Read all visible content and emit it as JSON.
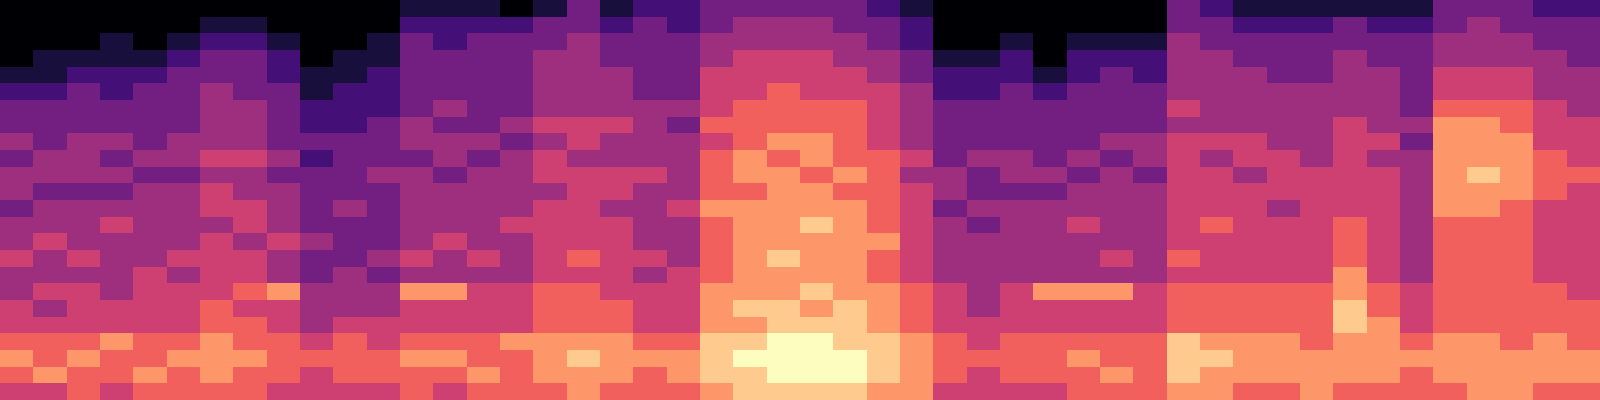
{
  "chart_data": {
    "type": "heatmap",
    "color": "magma",
    "tick_labels": false,
    "color_range": [
      0,
      9
    ],
    "values": [
      [
        5,
        6,
        7,
        6,
        5,
        5,
        4,
        4,
        5,
        4,
        4,
        3,
        4,
        4,
        3,
        4,
        3,
        3,
        2,
        1,
        0,
        0,
        0,
        0
      ],
      [
        5,
        7,
        6,
        6,
        5,
        4,
        5,
        4,
        4,
        5,
        4,
        4,
        3,
        4,
        4,
        3,
        3,
        3,
        2,
        1,
        1,
        0,
        0,
        0
      ],
      [
        6,
        6,
        7,
        6,
        5,
        5,
        5,
        4,
        5,
        4,
        4,
        4,
        3,
        4,
        4,
        4,
        3,
        3,
        3,
        2,
        1,
        0,
        0,
        0
      ],
      [
        5,
        6,
        6,
        7,
        5,
        5,
        4,
        4,
        4,
        4,
        5,
        4,
        3,
        4,
        3,
        4,
        3,
        3,
        2,
        2,
        1,
        1,
        0,
        0
      ],
      [
        6,
        7,
        6,
        6,
        5,
        5,
        5,
        5,
        4,
        4,
        4,
        4,
        4,
        3,
        4,
        3,
        3,
        3,
        3,
        2,
        1,
        0,
        0,
        0
      ],
      [
        6,
        6,
        7,
        6,
        5,
        5,
        5,
        4,
        5,
        4,
        4,
        4,
        4,
        3,
        4,
        4,
        3,
        3,
        3,
        3,
        2,
        1,
        0,
        0
      ],
      [
        6,
        7,
        7,
        7,
        6,
        6,
        5,
        5,
        5,
        5,
        4,
        5,
        5,
        4,
        5,
        4,
        4,
        4,
        4,
        3,
        3,
        2,
        1,
        0
      ],
      [
        6,
        6,
        7,
        6,
        6,
        5,
        6,
        5,
        5,
        4,
        5,
        5,
        4,
        4,
        5,
        4,
        4,
        4,
        3,
        3,
        3,
        2,
        1,
        0
      ],
      [
        5,
        6,
        6,
        6,
        5,
        5,
        7,
        4,
        4,
        5,
        4,
        4,
        4,
        3,
        4,
        3,
        3,
        3,
        3,
        2,
        2,
        1,
        0,
        0
      ],
      [
        5,
        5,
        6,
        5,
        4,
        4,
        4,
        3,
        3,
        4,
        3,
        3,
        3,
        3,
        2,
        3,
        2,
        2,
        1,
        1,
        0,
        0,
        0,
        0
      ],
      [
        5,
        6,
        6,
        6,
        5,
        4,
        4,
        4,
        3,
        3,
        3,
        4,
        3,
        3,
        3,
        3,
        2,
        2,
        2,
        1,
        1,
        0,
        0,
        0
      ],
      [
        5,
        6,
        6,
        5,
        5,
        4,
        4,
        3,
        4,
        3,
        3,
        3,
        3,
        4,
        3,
        3,
        3,
        2,
        2,
        2,
        1,
        1,
        0,
        0
      ],
      [
        6,
        6,
        7,
        6,
        5,
        5,
        7,
        4,
        5,
        4,
        4,
        4,
        4,
        4,
        3,
        4,
        4,
        3,
        3,
        3,
        3,
        3,
        2,
        1
      ],
      [
        5,
        6,
        7,
        6,
        5,
        5,
        7,
        4,
        4,
        5,
        4,
        4,
        4,
        3,
        4,
        4,
        3,
        4,
        3,
        3,
        3,
        2,
        2,
        1
      ],
      [
        6,
        7,
        6,
        6,
        5,
        5,
        5,
        4,
        5,
        4,
        4,
        4,
        4,
        4,
        3,
        4,
        3,
        3,
        3,
        3,
        3,
        3,
        2,
        1
      ],
      [
        6,
        6,
        6,
        7,
        5,
        5,
        5,
        4,
        4,
        4,
        5,
        4,
        4,
        4,
        4,
        3,
        4,
        3,
        3,
        3,
        3,
        3,
        2,
        0
      ],
      [
        6,
        7,
        7,
        7,
        6,
        6,
        6,
        5,
        5,
        5,
        5,
        5,
        4,
        5,
        5,
        4,
        5,
        4,
        4,
        4,
        4,
        3,
        3,
        1
      ],
      [
        7,
        7,
        8,
        7,
        6,
        6,
        6,
        5,
        6,
        5,
        5,
        5,
        5,
        5,
        4,
        5,
        5,
        4,
        4,
        4,
        4,
        4,
        3,
        3
      ],
      [
        6,
        7,
        7,
        7,
        6,
        6,
        5,
        5,
        5,
        5,
        5,
        4,
        5,
        5,
        4,
        4,
        5,
        4,
        4,
        4,
        3,
        3,
        2,
        1
      ],
      [
        6,
        6,
        7,
        6,
        5,
        5,
        5,
        4,
        5,
        4,
        4,
        4,
        4,
        5,
        4,
        4,
        4,
        4,
        3,
        3,
        3,
        3,
        3,
        2
      ],
      [
        6,
        7,
        7,
        6,
        5,
        5,
        5,
        5,
        4,
        4,
        4,
        5,
        4,
        4,
        4,
        4,
        3,
        4,
        3,
        3,
        3,
        3,
        2,
        2
      ],
      [
        7,
        8,
        8,
        8,
        7,
        7,
        7,
        6,
        6,
        6,
        6,
        7,
        6,
        6,
        6,
        5,
        6,
        5,
        5,
        5,
        4,
        4,
        3,
        3
      ],
      [
        8,
        8,
        9,
        8,
        7,
        8,
        7,
        7,
        7,
        7,
        7,
        7,
        6,
        7,
        7,
        6,
        6,
        6,
        5,
        5,
        5,
        4,
        4,
        3
      ],
      [
        8,
        9,
        9,
        9,
        8,
        8,
        7,
        7,
        8,
        7,
        7,
        7,
        7,
        7,
        6,
        7,
        6,
        6,
        6,
        5,
        5,
        4,
        4,
        3
      ],
      [
        8,
        9,
        9,
        9,
        8,
        7,
        8,
        7,
        7,
        7,
        8,
        7,
        7,
        6,
        7,
        7,
        6,
        6,
        5,
        5,
        5,
        4,
        4,
        3
      ],
      [
        8,
        9,
        9,
        8,
        8,
        8,
        7,
        7,
        7,
        7,
        7,
        7,
        6,
        7,
        6,
        6,
        6,
        6,
        5,
        5,
        4,
        4,
        3,
        3
      ],
      [
        7,
        8,
        8,
        8,
        7,
        7,
        7,
        6,
        6,
        7,
        6,
        6,
        6,
        6,
        6,
        5,
        5,
        5,
        5,
        4,
        4,
        3,
        3,
        2
      ],
      [
        7,
        7,
        7,
        7,
        6,
        6,
        6,
        5,
        5,
        5,
        5,
        5,
        5,
        4,
        5,
        4,
        4,
        4,
        4,
        3,
        3,
        2,
        2,
        1
      ],
      [
        5,
        6,
        6,
        6,
        5,
        5,
        5,
        4,
        4,
        4,
        4,
        3,
        4,
        4,
        3,
        3,
        3,
        3,
        2,
        2,
        1,
        0,
        0,
        0
      ],
      [
        5,
        5,
        6,
        5,
        5,
        4,
        4,
        4,
        4,
        4,
        3,
        4,
        3,
        3,
        4,
        3,
        3,
        3,
        2,
        2,
        1,
        0,
        0,
        0
      ],
      [
        5,
        6,
        6,
        6,
        5,
        5,
        5,
        4,
        4,
        4,
        4,
        4,
        3,
        4,
        4,
        3,
        3,
        3,
        3,
        2,
        2,
        1,
        0,
        0
      ],
      [
        5,
        6,
        6,
        6,
        5,
        5,
        7,
        4,
        4,
        4,
        4,
        4,
        3,
        4,
        3,
        3,
        3,
        3,
        2,
        1,
        0,
        0,
        0,
        0
      ],
      [
        6,
        6,
        7,
        6,
        5,
        5,
        7,
        4,
        4,
        4,
        5,
        4,
        4,
        3,
        4,
        3,
        3,
        3,
        3,
        2,
        2,
        1,
        0,
        0
      ],
      [
        6,
        7,
        6,
        6,
        5,
        5,
        7,
        4,
        5,
        4,
        4,
        4,
        4,
        4,
        3,
        4,
        3,
        3,
        3,
        3,
        2,
        1,
        0,
        0
      ],
      [
        6,
        6,
        6,
        6,
        5,
        5,
        5,
        4,
        4,
        4,
        4,
        4,
        4,
        3,
        4,
        4,
        3,
        3,
        3,
        2,
        2,
        1,
        0,
        0
      ],
      [
        7,
        8,
        8,
        8,
        6,
        6,
        6,
        5,
        6,
        5,
        5,
        5,
        5,
        5,
        5,
        5,
        4,
        5,
        4,
        4,
        4,
        4,
        3,
        3
      ],
      [
        7,
        7,
        8,
        7,
        6,
        6,
        6,
        5,
        5,
        5,
        6,
        5,
        5,
        5,
        4,
        5,
        4,
        4,
        4,
        4,
        4,
        3,
        3,
        2
      ],
      [
        6,
        7,
        7,
        7,
        6,
        6,
        6,
        5,
        5,
        5,
        5,
        5,
        5,
        4,
        5,
        5,
        4,
        4,
        4,
        4,
        3,
        3,
        2,
        1
      ],
      [
        6,
        7,
        7,
        7,
        6,
        6,
        6,
        5,
        5,
        5,
        5,
        4,
        5,
        5,
        5,
        4,
        4,
        4,
        4,
        3,
        3,
        3,
        2,
        1
      ],
      [
        7,
        7,
        7,
        6,
        6,
        6,
        6,
        5,
        5,
        5,
        5,
        5,
        5,
        5,
        4,
        4,
        4,
        4,
        4,
        3,
        3,
        3,
        2,
        1
      ],
      [
        6,
        7,
        7,
        7,
        8,
        8,
        7,
        7,
        6,
        6,
        6,
        5,
        5,
        5,
        5,
        5,
        5,
        4,
        4,
        4,
        4,
        3,
        3,
        1
      ],
      [
        6,
        7,
        7,
        7,
        7,
        6,
        6,
        5,
        5,
        5,
        5,
        5,
        5,
        5,
        4,
        5,
        4,
        4,
        4,
        4,
        3,
        3,
        2,
        1
      ],
      [
        6,
        6,
        7,
        6,
        5,
        5,
        5,
        4,
        4,
        4,
        4,
        4,
        4,
        4,
        4,
        3,
        4,
        3,
        3,
        3,
        3,
        3,
        2,
        1
      ],
      [
        6,
        7,
        7,
        7,
        6,
        6,
        6,
        6,
        6,
        6,
        6,
        7,
        7,
        7,
        7,
        7,
        7,
        6,
        5,
        5,
        4,
        4,
        3,
        3
      ],
      [
        7,
        7,
        7,
        7,
        6,
        6,
        6,
        6,
        6,
        6,
        6,
        7,
        7,
        8,
        7,
        7,
        7,
        6,
        5,
        5,
        4,
        4,
        4,
        3
      ],
      [
        7,
        7,
        7,
        6,
        6,
        6,
        6,
        6,
        6,
        6,
        6,
        6,
        7,
        7,
        7,
        7,
        6,
        6,
        5,
        5,
        4,
        4,
        3,
        3
      ],
      [
        6,
        7,
        7,
        7,
        6,
        6,
        6,
        5,
        5,
        5,
        5,
        5,
        6,
        6,
        6,
        5,
        5,
        5,
        4,
        4,
        4,
        3,
        3,
        2
      ],
      [
        6,
        7,
        7,
        6,
        6,
        6,
        5,
        5,
        5,
        5,
        5,
        5,
        5,
        6,
        5,
        5,
        5,
        4,
        4,
        4,
        3,
        3,
        3,
        2
      ]
    ]
  }
}
